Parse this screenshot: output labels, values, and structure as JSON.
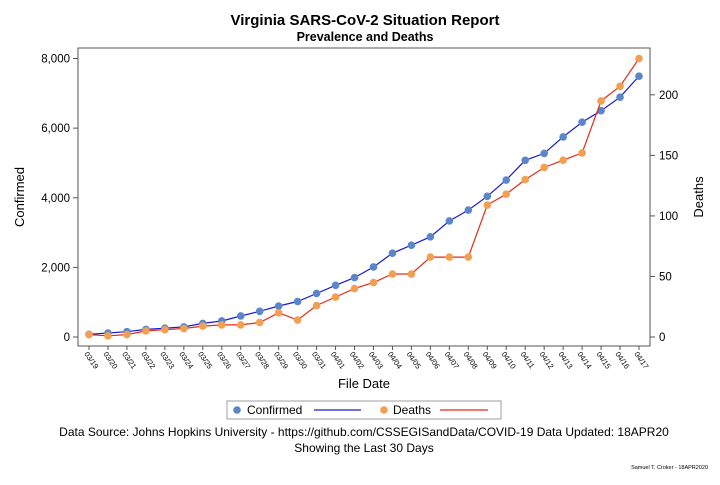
{
  "chart_data": {
    "type": "line",
    "title": "Virginia SARS-CoV-2 Situation Report",
    "subtitle": "Prevalence and Deaths",
    "xlabel": "File Date",
    "ylabel": "Confirmed",
    "y2label": "Deaths",
    "categories": [
      "03/19",
      "03/20",
      "03/21",
      "03/22",
      "03/23",
      "03/24",
      "03/25",
      "03/26",
      "03/27",
      "03/28",
      "03/29",
      "03/30",
      "03/31",
      "04/01",
      "04/02",
      "04/03",
      "04/04",
      "04/05",
      "04/06",
      "04/07",
      "04/08",
      "04/09",
      "04/10",
      "04/11",
      "04/12",
      "04/13",
      "04/14",
      "04/15",
      "04/16",
      "04/17"
    ],
    "ylim": [
      0,
      8000
    ],
    "yticks": [
      "0",
      "2,000",
      "4,000",
      "6,000",
      "8,000"
    ],
    "y2lim": [
      0,
      230
    ],
    "y2ticks": [
      "0",
      "50",
      "100",
      "150",
      "200"
    ],
    "series": [
      {
        "name": "Confirmed",
        "axis": "left",
        "marker_color": "#5b87c9",
        "line_color": "#1a1ad1",
        "values": [
          77,
          114,
          152,
          219,
          254,
          290,
          391,
          460,
          604,
          739,
          890,
          1020,
          1250,
          1484,
          1706,
          2012,
          2407,
          2637,
          2878,
          3333,
          3645,
          4042,
          4509,
          5077,
          5274,
          5747,
          6171,
          6500,
          6889,
          7491
        ]
      },
      {
        "name": "Deaths",
        "axis": "right",
        "marker_color": "#f2a050",
        "line_color": "#e52a16",
        "values": [
          2,
          1,
          2,
          5,
          6,
          7,
          9,
          10,
          10,
          12,
          20,
          14,
          26,
          33,
          40,
          45,
          52,
          52,
          66,
          66,
          66,
          109,
          118,
          130,
          140,
          146,
          152,
          195,
          207,
          230
        ]
      }
    ],
    "grid": false,
    "legend_position": "bottom"
  },
  "footer": {
    "source": "Data Source: Johns Hopkins University - https://github.com/CSSEGISandData/COVID-19 Data Updated: 18APR20",
    "showing": "Showing the Last 30 Days",
    "credit": "Samuel T. Croker - 18APR2020"
  }
}
